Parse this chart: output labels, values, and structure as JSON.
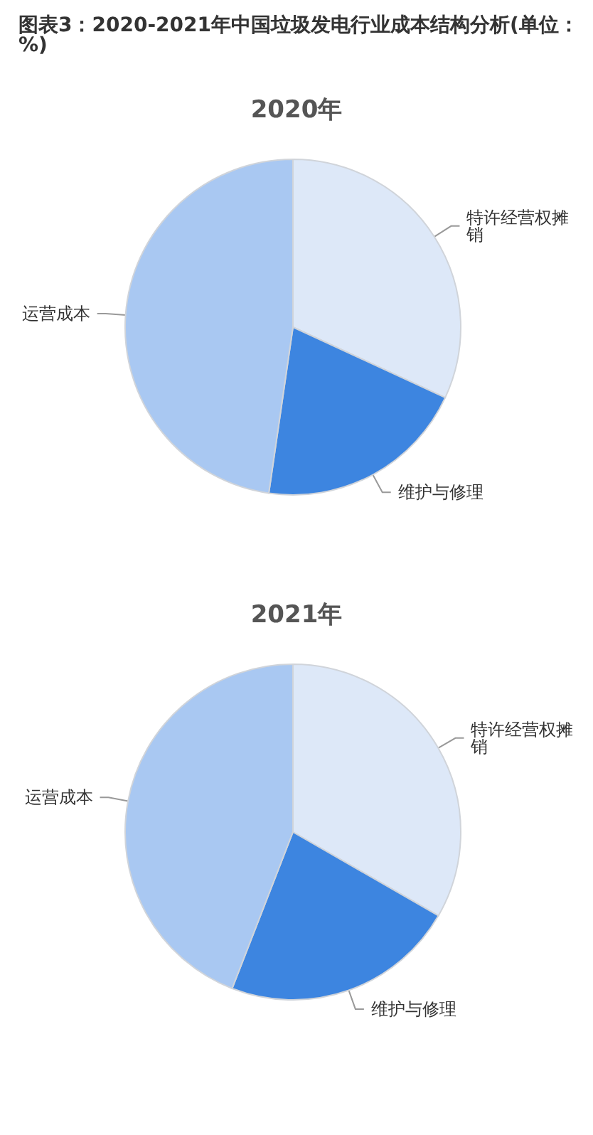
{
  "chart_data": [
    {
      "type": "pie",
      "title": "图表3：2020-2021年中国垃圾发电行业成本结构分析(单位：%)",
      "subtitle": "2020年",
      "categories": [
        "特许经营权摊销",
        "维护与修理",
        "运营成本"
      ],
      "values": [
        31.9,
        20.4,
        47.7
      ],
      "colors": [
        "#dde8f8",
        "#3d85e0",
        "#a9c8f2"
      ]
    },
    {
      "type": "pie",
      "subtitle": "2021年",
      "categories": [
        "特许经营权摊销",
        "维护与修理",
        "运营成本"
      ],
      "values": [
        33.3,
        22.6,
        44.1
      ],
      "colors": [
        "#dde8f8",
        "#3d85e0",
        "#a9c8f2"
      ]
    }
  ]
}
